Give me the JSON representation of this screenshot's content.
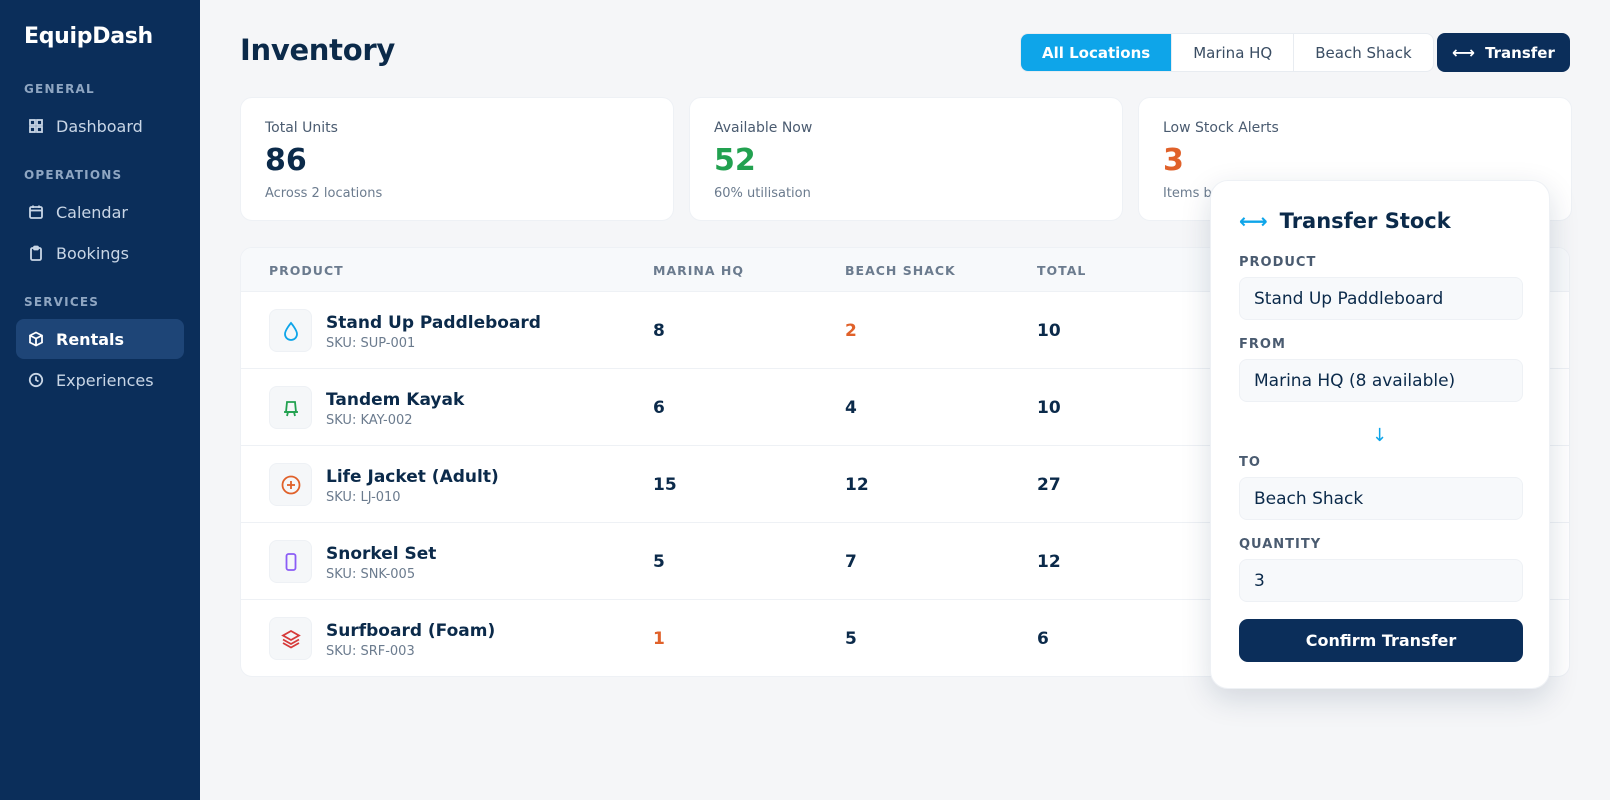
{
  "app": {
    "brand": "EquipDash"
  },
  "sidebar": {
    "sections": [
      {
        "title": "GENERAL",
        "items": [
          {
            "label": "Dashboard",
            "icon": "grid-icon"
          }
        ]
      },
      {
        "title": "OPERATIONS",
        "items": [
          {
            "label": "Calendar",
            "icon": "calendar-icon"
          },
          {
            "label": "Bookings",
            "icon": "clipboard-icon"
          }
        ]
      },
      {
        "title": "SERVICES",
        "items": [
          {
            "label": "Rentals",
            "icon": "box-icon",
            "active": true
          },
          {
            "label": "Experiences",
            "icon": "clock-icon"
          }
        ]
      }
    ]
  },
  "header": {
    "title": "Inventory",
    "filters": [
      "All Locations",
      "Marina HQ",
      "Beach Shack"
    ],
    "active_filter": "All Locations",
    "transfer_label": "Transfer"
  },
  "stats": [
    {
      "label": "Total Units",
      "value": "86",
      "sub": "Across 2 locations",
      "color": "#0b2a4a"
    },
    {
      "label": "Available Now",
      "value": "52",
      "sub": "60% utilisation",
      "color": "#22a150"
    },
    {
      "label": "Low Stock Alerts",
      "value": "3",
      "sub": "Items be",
      "color": "#e0612a"
    }
  ],
  "table": {
    "columns": [
      "PRODUCT",
      "MARINA HQ",
      "BEACH SHACK",
      "TOTAL"
    ],
    "rows": [
      {
        "name": "Stand Up Paddleboard",
        "sku": "SKU: SUP-001",
        "marina": "8",
        "beach": "2",
        "total": "10",
        "icon": "drop-icon",
        "icon_color": "#0ea5e9",
        "low_beach": true
      },
      {
        "name": "Tandem Kayak",
        "sku": "SKU: KAY-002",
        "marina": "6",
        "beach": "4",
        "total": "10",
        "icon": "bell-icon",
        "icon_color": "#22a150"
      },
      {
        "name": "Life Jacket (Adult)",
        "sku": "SKU: LJ-010",
        "marina": "15",
        "beach": "12",
        "total": "27",
        "icon": "plus-circle-icon",
        "icon_color": "#e0612a"
      },
      {
        "name": "Snorkel Set",
        "sku": "SKU: SNK-005",
        "marina": "5",
        "beach": "7",
        "total": "12",
        "icon": "phone-icon",
        "icon_color": "#8b5cf6"
      },
      {
        "name": "Surfboard (Foam)",
        "sku": "SKU: SRF-003",
        "marina": "1",
        "beach": "5",
        "total": "6",
        "icon": "layers-icon",
        "icon_color": "#d63b3b",
        "low_marina": true
      }
    ]
  },
  "transfer_panel": {
    "title": "Transfer Stock",
    "product_label": "PRODUCT",
    "product_value": "Stand Up Paddleboard",
    "from_label": "FROM",
    "from_value": "Marina HQ (8 available)",
    "to_label": "TO",
    "to_value": "Beach Shack",
    "quantity_label": "QUANTITY",
    "quantity_value": "3",
    "confirm_label": "Confirm Transfer"
  }
}
